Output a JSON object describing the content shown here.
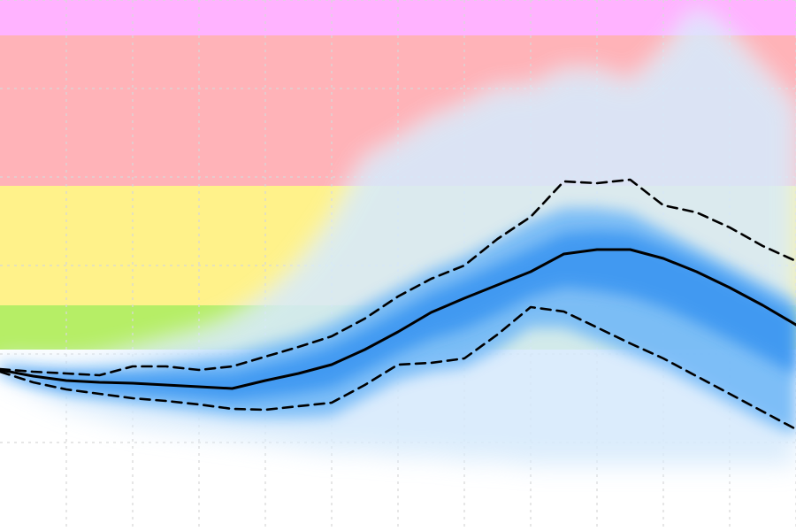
{
  "chart_data": {
    "type": "area",
    "title": "",
    "xlabel": "",
    "ylabel": "",
    "grid": true,
    "legend": "none",
    "x_range": [
      0,
      24
    ],
    "y_range": [
      0,
      600
    ],
    "x_gridlines": [
      2,
      4,
      6,
      8,
      10,
      12,
      14,
      16,
      18,
      20,
      22,
      24
    ],
    "y_gridlines": [
      100,
      200,
      300,
      400,
      500,
      600
    ],
    "category_bands": [
      {
        "name": "green",
        "from": 205,
        "to": 255,
        "color": "#b6ee66"
      },
      {
        "name": "yellow",
        "from": 255,
        "to": 390,
        "color": "#fff28a"
      },
      {
        "name": "red",
        "from": 390,
        "to": 560,
        "color": "#ffb3b8"
      },
      {
        "name": "magenta",
        "from": 560,
        "to": 600,
        "color": "#ffb3ff"
      }
    ],
    "x": [
      0,
      1,
      2,
      3,
      4,
      5,
      6,
      7,
      8,
      9,
      10,
      11,
      12,
      13,
      14,
      15,
      16,
      17,
      18,
      19,
      20,
      21,
      22,
      23,
      24
    ],
    "series": [
      {
        "role": "median",
        "style": "solid",
        "color": "#000000",
        "values": [
          182,
          175,
          170,
          168,
          167,
          165,
          163,
          161,
          170,
          178,
          188,
          205,
          225,
          247,
          263,
          278,
          293,
          313,
          318,
          318,
          308,
          293,
          275,
          255,
          233
        ]
      },
      {
        "role": "upper",
        "style": "dashed",
        "color": "#000000",
        "values": [
          183,
          180,
          178,
          176,
          186,
          186,
          182,
          186,
          197,
          208,
          220,
          240,
          265,
          285,
          300,
          330,
          355,
          395,
          393,
          397,
          368,
          360,
          343,
          322,
          305
        ]
      },
      {
        "role": "lower",
        "style": "dashed",
        "color": "#000000",
        "values": [
          180,
          168,
          160,
          155,
          150,
          147,
          143,
          138,
          137,
          141,
          145,
          165,
          188,
          190,
          195,
          222,
          253,
          248,
          230,
          212,
          195,
          175,
          155,
          135,
          115
        ]
      },
      {
        "role": "plume-outer",
        "style": "fill",
        "color": "#cfe6fb",
        "values": [
          192,
          190,
          190,
          195,
          205,
          215,
          225,
          240,
          265,
          300,
          350,
          420,
          440,
          465,
          480,
          500,
          500,
          520,
          520,
          505,
          540,
          590,
          560,
          520,
          480
        ],
        "lower": [
          176,
          158,
          140,
          130,
          120,
          115,
          110,
          105,
          100,
          95,
          90,
          90,
          85,
          85,
          80,
          80,
          75,
          75,
          75,
          75,
          75,
          75,
          75,
          75,
          75
        ]
      },
      {
        "role": "plume-inner",
        "style": "fill",
        "color": "#6db6f7",
        "values": [
          186,
          183,
          182,
          183,
          185,
          190,
          195,
          200,
          210,
          220,
          235,
          255,
          275,
          295,
          310,
          330,
          350,
          365,
          365,
          360,
          340,
          320,
          300,
          280,
          260
        ],
        "lower": [
          179,
          165,
          155,
          150,
          145,
          140,
          135,
          130,
          128,
          128,
          130,
          150,
          170,
          180,
          185,
          205,
          230,
          230,
          215,
          200,
          185,
          165,
          145,
          125,
          108
        ]
      }
    ]
  }
}
